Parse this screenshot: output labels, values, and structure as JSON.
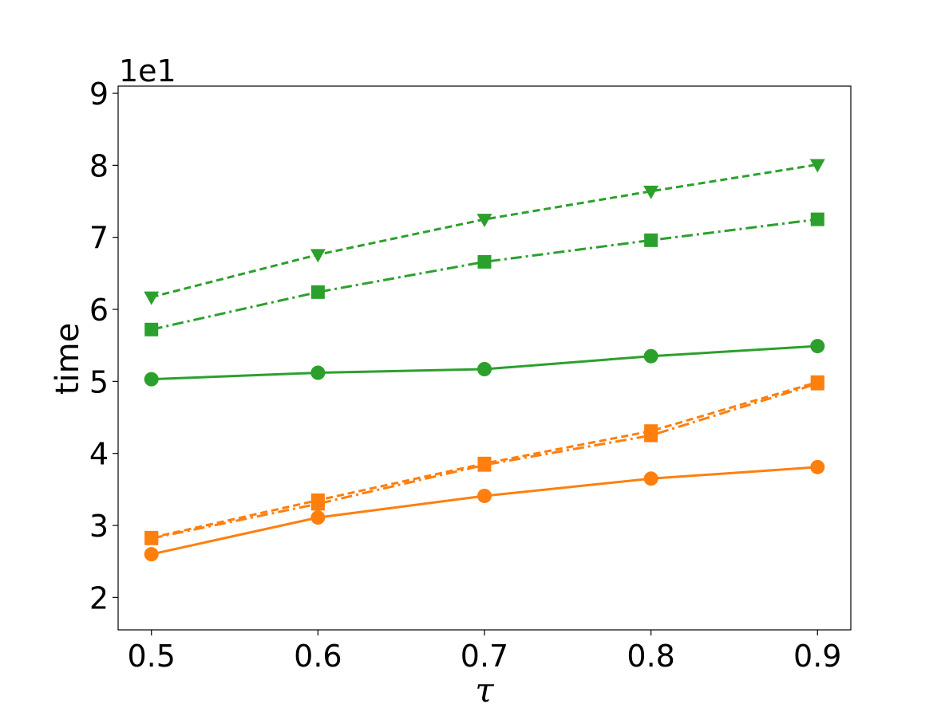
{
  "chart_data": {
    "type": "line",
    "title": "",
    "xlabel": "τ",
    "ylabel": "time",
    "y_offset_label": "1e1",
    "x": [
      0.5,
      0.6,
      0.7,
      0.8,
      0.9
    ],
    "x_tick_labels": [
      "0.5",
      "0.6",
      "0.7",
      "0.8",
      "0.9"
    ],
    "y_ticks": [
      2,
      3,
      4,
      5,
      6,
      7,
      8,
      9
    ],
    "y_tick_labels": [
      "2",
      "3",
      "4",
      "5",
      "6",
      "7",
      "8",
      "9"
    ],
    "xlim": [
      0.48,
      0.92
    ],
    "ylim": [
      1.55,
      9.1
    ],
    "grid": false,
    "series": [
      {
        "color": "#2ca02c",
        "linestyle": "dashed",
        "marker": "triangle-down",
        "values": [
          6.17,
          6.76,
          7.25,
          7.64,
          8.01
        ]
      },
      {
        "color": "#2ca02c",
        "linestyle": "dashdot",
        "marker": "square",
        "values": [
          5.72,
          6.24,
          6.66,
          6.96,
          7.25
        ]
      },
      {
        "color": "#2ca02c",
        "linestyle": "solid",
        "marker": "circle",
        "values": [
          5.03,
          5.12,
          5.17,
          5.35,
          5.49
        ]
      },
      {
        "color": "#ff7f0e",
        "linestyle": "dashed",
        "marker": "square",
        "values": [
          2.83,
          3.35,
          3.86,
          4.31,
          4.99
        ]
      },
      {
        "color": "#ff7f0e",
        "linestyle": "dashdot",
        "marker": "square",
        "values": [
          2.82,
          3.3,
          3.84,
          4.25,
          4.97
        ]
      },
      {
        "color": "#ff7f0e",
        "linestyle": "solid",
        "marker": "circle",
        "values": [
          2.6,
          3.11,
          3.41,
          3.65,
          3.81
        ]
      }
    ]
  }
}
